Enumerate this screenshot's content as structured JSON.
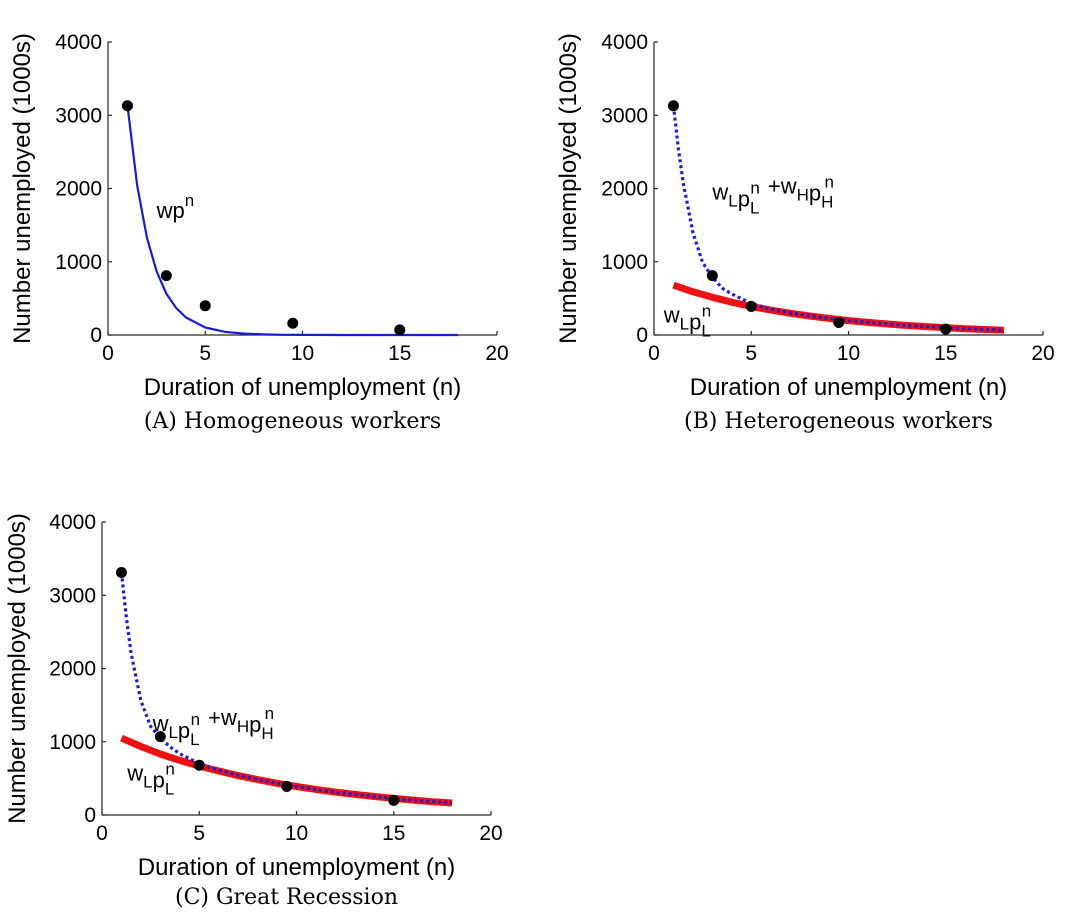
{
  "chart_data": [
    {
      "type": "line",
      "caption": "(A) Homogeneous workers",
      "xlabel": "Duration of unemployment (n)",
      "ylabel": "Number unemployed (1000s)",
      "xlim": [
        0,
        20
      ],
      "ylim": [
        0,
        4000
      ],
      "xticks": [
        0,
        5,
        10,
        15,
        20
      ],
      "yticks": [
        0,
        1000,
        2000,
        3000,
        4000
      ],
      "grid": false,
      "observed_points": {
        "x": [
          1,
          3,
          5,
          9.5,
          15
        ],
        "y": [
          3130,
          810,
          400,
          160,
          70
        ]
      },
      "series": [
        {
          "style": "solid",
          "color": "#1a1adb",
          "x": [
            1,
            1.5,
            2,
            2.5,
            3,
            3.5,
            4,
            5,
            6,
            7,
            8,
            9,
            10,
            12,
            14,
            16,
            18
          ],
          "y": [
            3130,
            2040,
            1330,
            870,
            565,
            370,
            240,
            102,
            44,
            19,
            8,
            3,
            1,
            0,
            0,
            0,
            0
          ]
        }
      ],
      "annotations": [
        {
          "base": "wp",
          "sup": "n",
          "x": 2.5,
          "y": 1600
        }
      ]
    },
    {
      "type": "line",
      "caption": "(B) Heterogeneous workers",
      "xlabel": "Duration of unemployment (n)",
      "ylabel": "Number unemployed (1000s)",
      "xlim": [
        0,
        20
      ],
      "ylim": [
        0,
        4000
      ],
      "xticks": [
        0,
        5,
        10,
        15,
        20
      ],
      "yticks": [
        0,
        1000,
        2000,
        3000,
        4000
      ],
      "grid": false,
      "observed_points": {
        "x": [
          1,
          3,
          5,
          9.5,
          15
        ],
        "y": [
          3130,
          810,
          390,
          170,
          80
        ]
      },
      "series": [
        {
          "style": "thick-red",
          "color": "#ee1111",
          "x": [
            1,
            2,
            3,
            4,
            5,
            6,
            7,
            8,
            9,
            10,
            11,
            12,
            13,
            14,
            15,
            16,
            17,
            18
          ],
          "y": [
            680,
            590,
            515,
            448,
            390,
            340,
            297,
            259,
            226,
            197,
            172,
            150,
            130,
            114,
            99,
            86,
            75,
            66
          ]
        },
        {
          "style": "dotted",
          "color": "#1a1adb",
          "x": [
            1,
            1.25,
            1.5,
            2,
            2.5,
            3,
            3.5,
            4,
            5,
            6,
            7,
            8,
            9,
            10,
            11,
            12,
            13,
            14,
            15,
            16,
            17,
            18
          ],
          "y": [
            3130,
            2550,
            2080,
            1400,
            990,
            790,
            640,
            560,
            430,
            355,
            302,
            262,
            228,
            198,
            172,
            150,
            130,
            114,
            99,
            86,
            75,
            66
          ]
        }
      ],
      "annotations": [
        {
          "base1": "w",
          "sub1": "L",
          "base2": "p",
          "sub2": "L",
          "sup2": "n",
          "plus": "+",
          "base3": "w",
          "sub3": "H",
          "base4": "p",
          "sub4": "H",
          "sup4": "n",
          "x": 3,
          "y": 1850
        },
        {
          "base1": "w",
          "sub1": "L",
          "base2": "p",
          "sub2": "L",
          "sup2": "n",
          "x": 0.5,
          "y": 170
        }
      ]
    },
    {
      "type": "line",
      "caption": "(C) Great Recession",
      "xlabel": "Duration of unemployment (n)",
      "ylabel": "Number unemployed (1000s)",
      "xlim": [
        0,
        20
      ],
      "ylim": [
        0,
        4000
      ],
      "xticks": [
        0,
        5,
        10,
        15,
        20
      ],
      "yticks": [
        0,
        1000,
        2000,
        3000,
        4000
      ],
      "grid": false,
      "observed_points": {
        "x": [
          1,
          3,
          5,
          9.5,
          15
        ],
        "y": [
          3310,
          1070,
          680,
          390,
          200
        ]
      },
      "series": [
        {
          "style": "thick-red",
          "color": "#ee1111",
          "x": [
            1,
            2,
            3,
            4,
            5,
            6,
            7,
            8,
            9,
            10,
            11,
            12,
            13,
            14,
            15,
            16,
            17,
            18
          ],
          "y": [
            1050,
            935,
            833,
            745,
            668,
            600,
            538,
            483,
            433,
            389,
            349,
            313,
            281,
            252,
            226,
            203,
            182,
            164
          ]
        },
        {
          "style": "dotted",
          "color": "#1a1adb",
          "x": [
            1,
            1.25,
            1.5,
            2,
            2.5,
            3,
            3.5,
            4,
            5,
            6,
            7,
            8,
            9,
            10,
            11,
            12,
            13,
            14,
            15,
            16,
            17,
            18
          ],
          "y": [
            3310,
            2700,
            2200,
            1560,
            1210,
            1050,
            930,
            835,
            700,
            610,
            543,
            486,
            435,
            389,
            349,
            313,
            281,
            252,
            226,
            203,
            182,
            164
          ]
        }
      ],
      "annotations": [
        {
          "base1": "w",
          "sub1": "L",
          "base2": "p",
          "sub2": "L",
          "sup2": "n",
          "plus": "+",
          "base3": "w",
          "sub3": "H",
          "base4": "p",
          "sub4": "H",
          "sup4": "n",
          "x": 2.6,
          "y": 1150
        },
        {
          "base1": "w",
          "sub1": "L",
          "base2": "p",
          "sub2": "L",
          "sup2": "n",
          "x": 1.3,
          "y": 470
        }
      ]
    }
  ]
}
